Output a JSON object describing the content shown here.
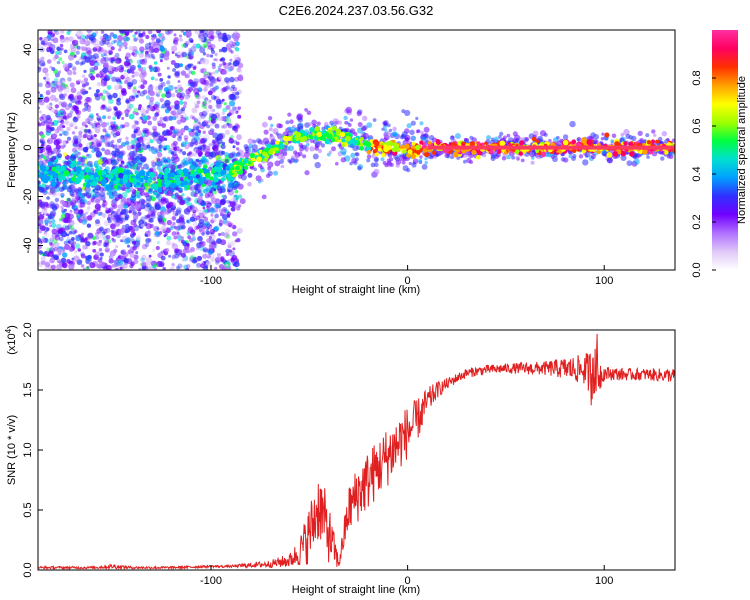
{
  "title": "C2E6.2024.237.03.56.G32",
  "chart_data": [
    {
      "type": "heatmap",
      "xlabel": "Height of straight line (km)",
      "ylabel": "Frequency (Hz)",
      "xlim": [
        -188,
        136
      ],
      "ylim": [
        -50,
        48
      ],
      "x_ticks": [
        -100,
        0,
        100
      ],
      "y_ticks": [
        -40,
        -20,
        0,
        20,
        40
      ],
      "colorbar": {
        "label": "Normalized spectral amplitude",
        "range": [
          0,
          1
        ],
        "ticks": [
          0.0,
          0.2,
          0.4,
          0.6,
          0.8
        ],
        "colors": [
          "#ffffff",
          "#e0c8f8",
          "#b070ff",
          "#7000ff",
          "#3030ff",
          "#00a0ff",
          "#00e0d0",
          "#00ff40",
          "#a0ff00",
          "#ffff00",
          "#ffa000",
          "#ff3000",
          "#ff0060",
          "#ff30a0"
        ]
      },
      "ridge": {
        "x": [
          -188,
          -170,
          -160,
          -150,
          -140,
          -130,
          -120,
          -110,
          -100,
          -90,
          -80,
          -70,
          -60,
          -50,
          -40,
          -30,
          -20,
          -10,
          0,
          10,
          50,
          90,
          136
        ],
        "y": [
          -10,
          -11,
          -12,
          -12,
          -13,
          -13,
          -13,
          -12,
          -11,
          -9,
          -6,
          -2,
          3,
          5,
          5,
          4,
          1,
          0,
          -1,
          0,
          0,
          0,
          0
        ]
      }
    },
    {
      "type": "line",
      "xlabel": "Height of straight line (km)",
      "ylabel": "SNR (10 * v/v)",
      "yscale_label": "(x10",
      "yscale_exp": "4",
      "yscale_close": ")",
      "xlim": [
        -188,
        136
      ],
      "ylim": [
        0,
        2.0
      ],
      "x_ticks": [
        -100,
        0,
        100
      ],
      "y_ticks": [
        0.0,
        0.5,
        1.0,
        1.5,
        2.0
      ],
      "color": "#e02020",
      "envelope": {
        "x": [
          -188,
          -160,
          -150,
          -140,
          -120,
          -100,
          -90,
          -80,
          -70,
          -60,
          -55,
          -50,
          -45,
          -40,
          -35,
          -30,
          -25,
          -20,
          -15,
          -10,
          -5,
          0,
          5,
          10,
          15,
          20,
          25,
          30,
          40,
          50,
          60,
          70,
          80,
          90,
          95,
          100,
          110,
          120,
          136
        ],
        "base": [
          0.02,
          0.02,
          0.03,
          0.02,
          0.02,
          0.03,
          0.03,
          0.04,
          0.05,
          0.08,
          0.15,
          0.3,
          0.55,
          0.3,
          0.05,
          0.5,
          0.65,
          0.75,
          0.85,
          0.95,
          1.05,
          1.15,
          1.25,
          1.4,
          1.5,
          1.55,
          1.6,
          1.64,
          1.67,
          1.68,
          1.68,
          1.68,
          1.68,
          1.67,
          1.62,
          1.64,
          1.63,
          1.63,
          1.62
        ],
        "noise": [
          0.01,
          0.01,
          0.02,
          0.01,
          0.01,
          0.01,
          0.01,
          0.02,
          0.03,
          0.06,
          0.12,
          0.25,
          0.3,
          0.25,
          0.05,
          0.2,
          0.25,
          0.25,
          0.25,
          0.25,
          0.25,
          0.22,
          0.18,
          0.12,
          0.07,
          0.05,
          0.04,
          0.04,
          0.04,
          0.04,
          0.05,
          0.06,
          0.09,
          0.13,
          0.25,
          0.06,
          0.05,
          0.05,
          0.06
        ]
      }
    }
  ]
}
